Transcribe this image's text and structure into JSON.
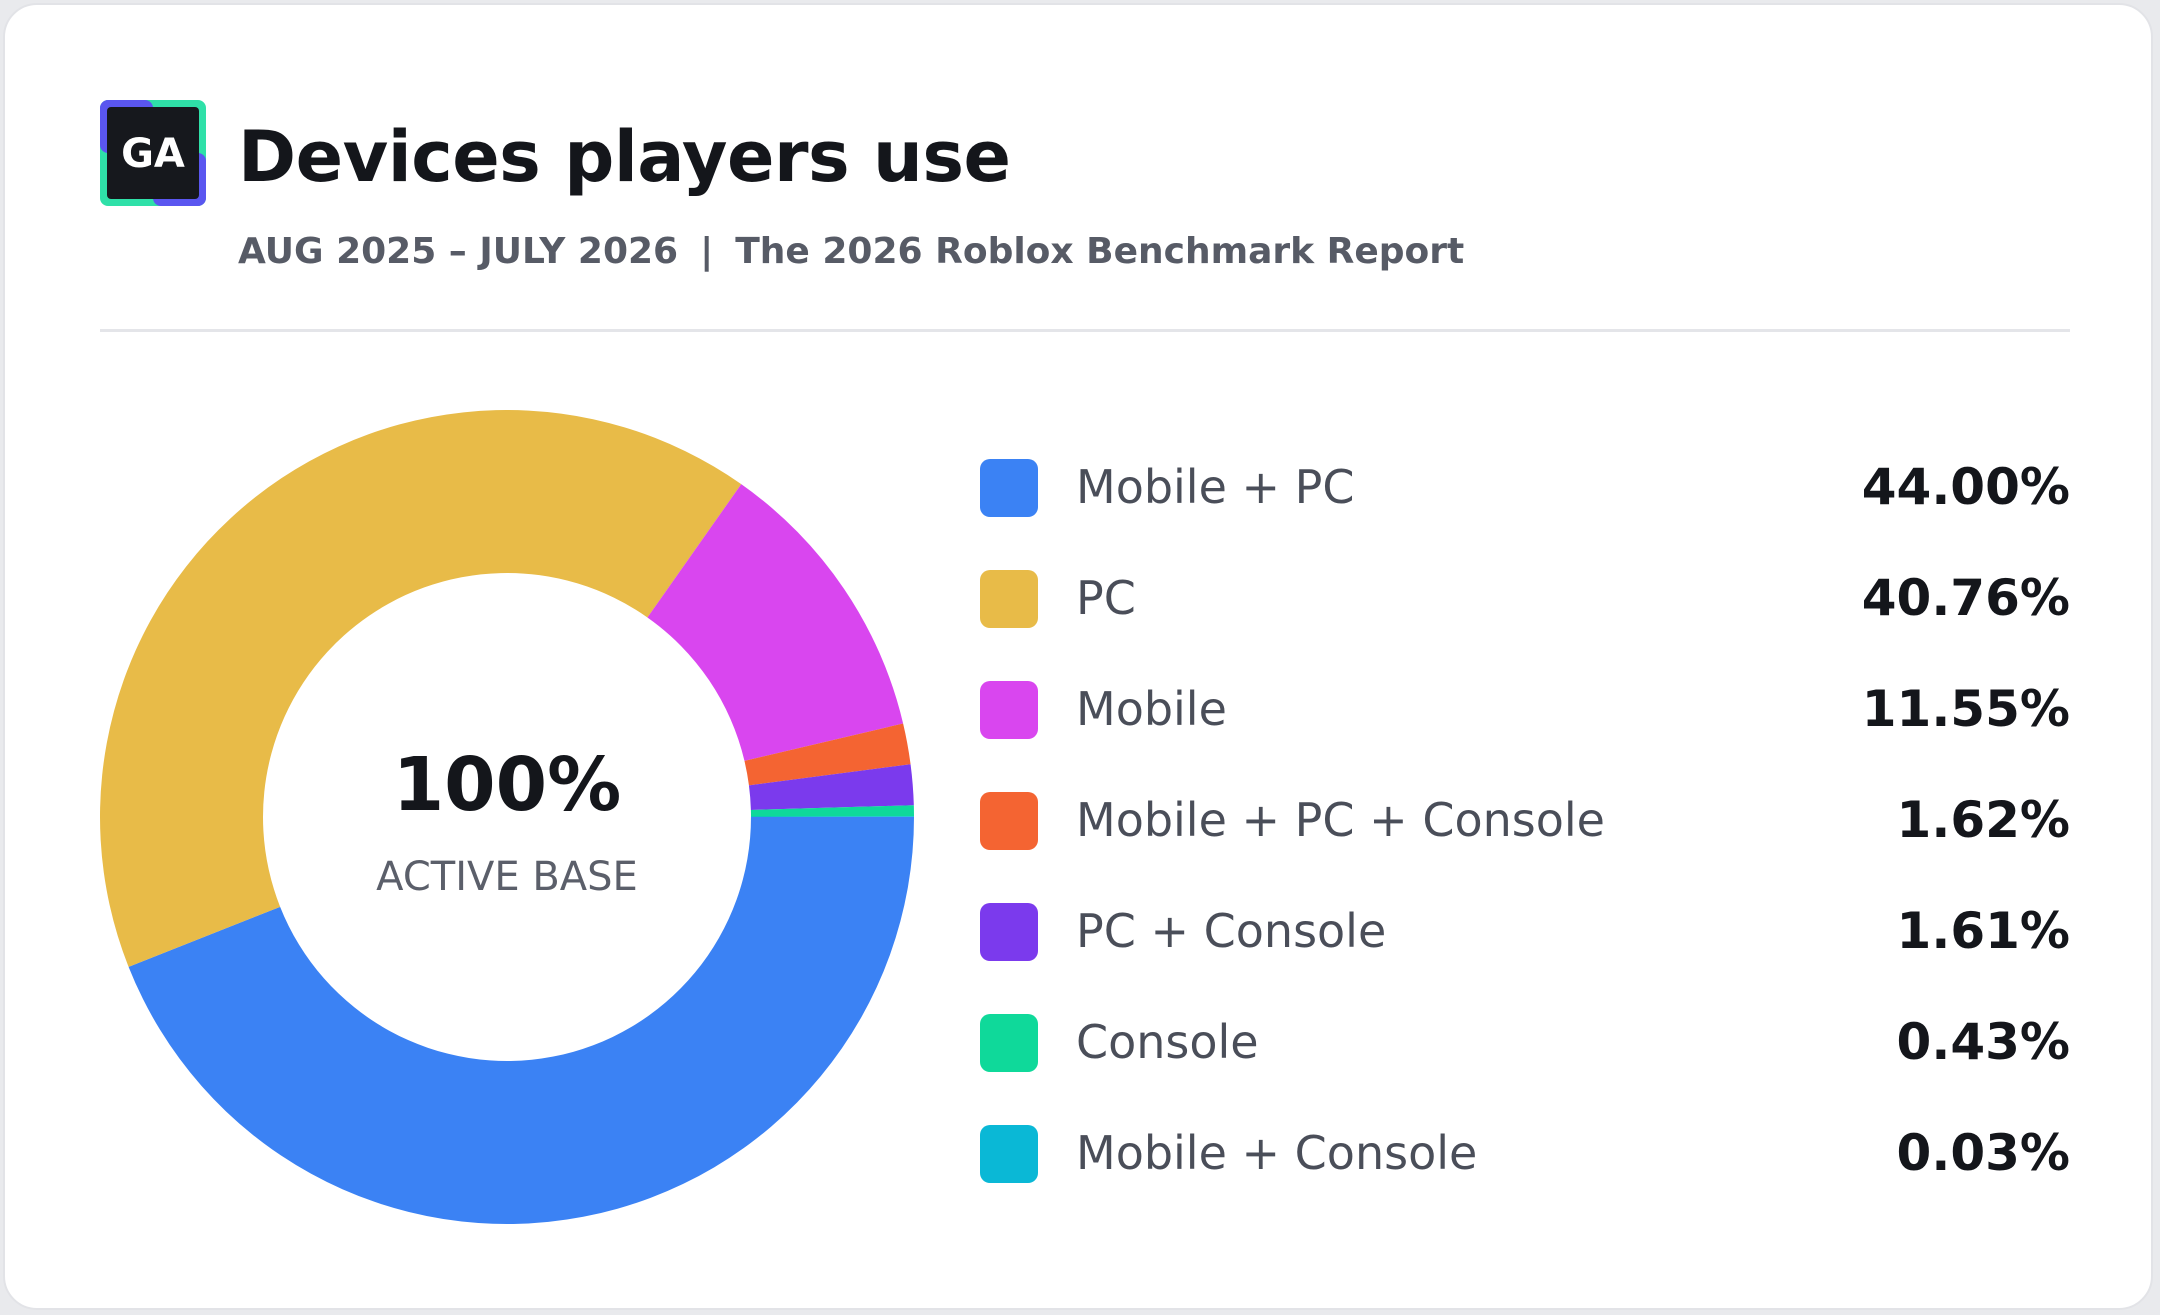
{
  "header": {
    "logo_text": "GA",
    "title": "Devices players use",
    "period": "AUG 2025 – JULY 2026",
    "separator": "|",
    "report": "The 2026 Roblox Benchmark Report"
  },
  "center": {
    "value": "100%",
    "label": "ACTIVE BASE"
  },
  "colors": {
    "logo_bg": "#16181d",
    "logo_green": "#2fe0a8",
    "logo_blue": "#5a56f0"
  },
  "chart_data": {
    "type": "pie",
    "style": "donut",
    "legend_position": "right",
    "slices": [
      {
        "label": "Mobile + PC",
        "value": 44.0,
        "display": "44.00%",
        "color": "#3b82f4"
      },
      {
        "label": "PC",
        "value": 40.76,
        "display": "40.76%",
        "color": "#e8bb48"
      },
      {
        "label": "Mobile",
        "value": 11.55,
        "display": "11.55%",
        "color": "#d946ef"
      },
      {
        "label": "Mobile + PC + Console",
        "value": 1.62,
        "display": "1.62%",
        "color": "#f46432"
      },
      {
        "label": "PC + Console",
        "value": 1.61,
        "display": "1.61%",
        "color": "#7b3aed"
      },
      {
        "label": "Console",
        "value": 0.43,
        "display": "0.43%",
        "color": "#0fd99a"
      },
      {
        "label": "Mobile + Console",
        "value": 0.03,
        "display": "0.03%",
        "color": "#0ab8d6"
      }
    ]
  }
}
